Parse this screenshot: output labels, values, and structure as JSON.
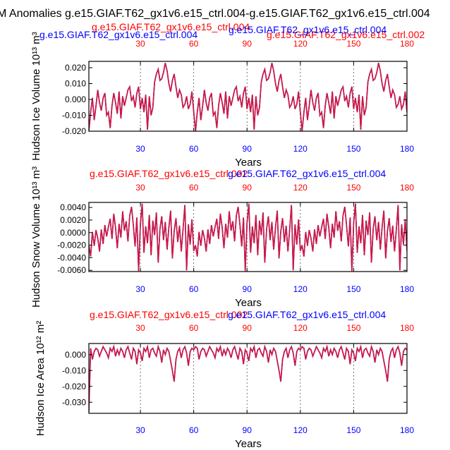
{
  "title": "M Anomalies g.e15.GIAF.T62_gx1v6.e15_ctrl.004-g.e15.GIAF.T62_gx1v6.e15_ctrl.004",
  "colors": {
    "series_a": "#0000ff",
    "series_b": "#ff0000",
    "overlap": "#d4183a",
    "axis": "#000000"
  },
  "chart_data": [
    {
      "type": "line",
      "name": "ice-volume",
      "title_blue": "g.e15.GIAF.T62_gx1v6.e15_ctrl.004",
      "title_red": "g.e15.GIAF.T62_gx1v6.e15_ctrl.004",
      "subtitle_red_left": "g.e15.GIAF.T62_gx1v6.e15_ctrl.004",
      "subtitle_red_right": "g.e15.GIAF.T62_gx1v6.e15_ctrl.002",
      "xlabel": "Years",
      "ylabel": "Hudson Ice Volume 10¹³ m³",
      "xlim": [
        1,
        180
      ],
      "ylim": [
        -0.02,
        0.024
      ],
      "xticks": [
        "30",
        "60",
        "90",
        "120",
        "150",
        "180"
      ],
      "yticks": [
        "0.020",
        "0.010",
        "0.000",
        "-0.010",
        "-0.020"
      ],
      "ytick_values": [
        0.02,
        0.01,
        0.0,
        -0.01,
        -0.02
      ],
      "cycle_values": [
        -0.02,
        -0.008,
        0.001,
        -0.013,
        -0.004,
        0.006,
        -0.002,
        -0.007,
        0.001,
        0.004,
        -0.01,
        -0.008,
        -0.018,
        -0.004,
        0.004,
        -0.002,
        -0.009,
        0.005,
        -0.012,
        0.002,
        -0.004,
        0.001,
        0.006,
        0.008,
        -0.001,
        0.002,
        -0.005,
        0.004,
        0.008,
        -0.006,
        0.001,
        -0.008,
        0.003,
        -0.019,
        0.002,
        -0.01,
        -0.005,
        0.011,
        0.016,
        0.019,
        0.012,
        0.013,
        0.017,
        0.023,
        0.018,
        0.01,
        0.005,
        0.012,
        0.016,
        0.008,
        0.001,
        0.006,
        0.003,
        -0.005,
        -0.003,
        0.002,
        -0.006,
        -0.003,
        0.005,
        -0.008
      ]
    },
    {
      "type": "line",
      "name": "snow-volume",
      "title_red": "g.e15.GIAF.T62_gx1v6.e15_ctrl.002",
      "title_blue": "g.e15.GIAF.T62_gx1v6.e15_ctrl.004",
      "xlabel": "Years",
      "ylabel": "Hudson Snow Volume 10¹³ m³",
      "xlim": [
        1,
        180
      ],
      "ylim": [
        -0.0062,
        0.0048
      ],
      "xticks": [
        "30",
        "60",
        "90",
        "120",
        "150",
        "180"
      ],
      "yticks": [
        "0.0040",
        "0.0020",
        "0.0000",
        "-0.0020",
        "-0.0040",
        "-0.0060"
      ],
      "ytick_values": [
        0.004,
        0.002,
        0.0,
        -0.002,
        -0.004,
        -0.006
      ],
      "cycle_values": [
        -0.002,
        -0.0038,
        0.0001,
        -0.0021,
        0.0004,
        -0.0009,
        -0.003,
        0.0005,
        -0.0018,
        0.0012,
        -0.0006,
        0.0009,
        0.0022,
        -0.001,
        0.003,
        0.0008,
        -0.0025,
        0.0014,
        -0.0008,
        0.0034,
        0.0003,
        0.0018,
        -0.0014,
        0.0027,
        0.0041,
        0.0012,
        -0.0022,
        0.0024,
        -0.0061,
        0.0015,
        0.0046,
        -0.0032,
        0.001,
        -0.0017,
        0.0028,
        -0.0036,
        0.0019,
        -0.0004,
        0.0032,
        -0.0048,
        0.0006,
        0.0026,
        -0.0012,
        0.0017,
        -0.0027,
        0.0008,
        0.0035,
        -0.0041,
        0.0002,
        0.0023,
        -0.0015,
        0.0011,
        -0.003,
        0.0005,
        0.0044,
        -0.006,
        0.0013,
        -0.0019,
        0.0021,
        -0.0029
      ]
    },
    {
      "type": "line",
      "name": "ice-area",
      "title_red": "g.e15.GIAF.T62_gx1v6.e15_ctrl.002",
      "title_blue": "g.e15.GIAF.T62_gx1v6.e15_ctrl.004",
      "xlabel": "Years",
      "ylabel": "Hudson Ice Area 10¹² m²",
      "xlim": [
        1,
        180
      ],
      "ylim": [
        -0.037,
        0.007
      ],
      "xticks": [
        "30",
        "60",
        "90",
        "120",
        "150",
        "180"
      ],
      "yticks": [
        "0.000",
        "-0.010",
        "-0.020",
        "-0.030"
      ],
      "ytick_values": [
        0.0,
        -0.01,
        -0.02,
        -0.03
      ],
      "first_value": -0.036,
      "cycle_values": [
        0.005,
        0.004,
        -0.003,
        0.002,
        0.004,
        0.003,
        -0.001,
        0.002,
        0.005,
        0.003,
        0.001,
        -0.002,
        0.004,
        0.002,
        0.005,
        -0.001,
        0.003,
        0.0,
        0.004,
        0.002,
        -0.002,
        0.003,
        0.005,
        0.001,
        -0.003,
        0.004,
        0.002,
        -0.006,
        0.003,
        0.001,
        -0.004,
        0.004,
        0.002,
        0.005,
        -0.002,
        0.003,
        0.004,
        0.001,
        -0.001,
        0.005,
        0.002,
        -0.005,
        0.003,
        0.0,
        0.004,
        0.002,
        -0.004,
        -0.01,
        -0.017,
        -0.003,
        0.002,
        0.004,
        -0.002,
        0.003,
        0.005,
        0.001,
        -0.007,
        0.002,
        0.004,
        0.003
      ]
    }
  ]
}
